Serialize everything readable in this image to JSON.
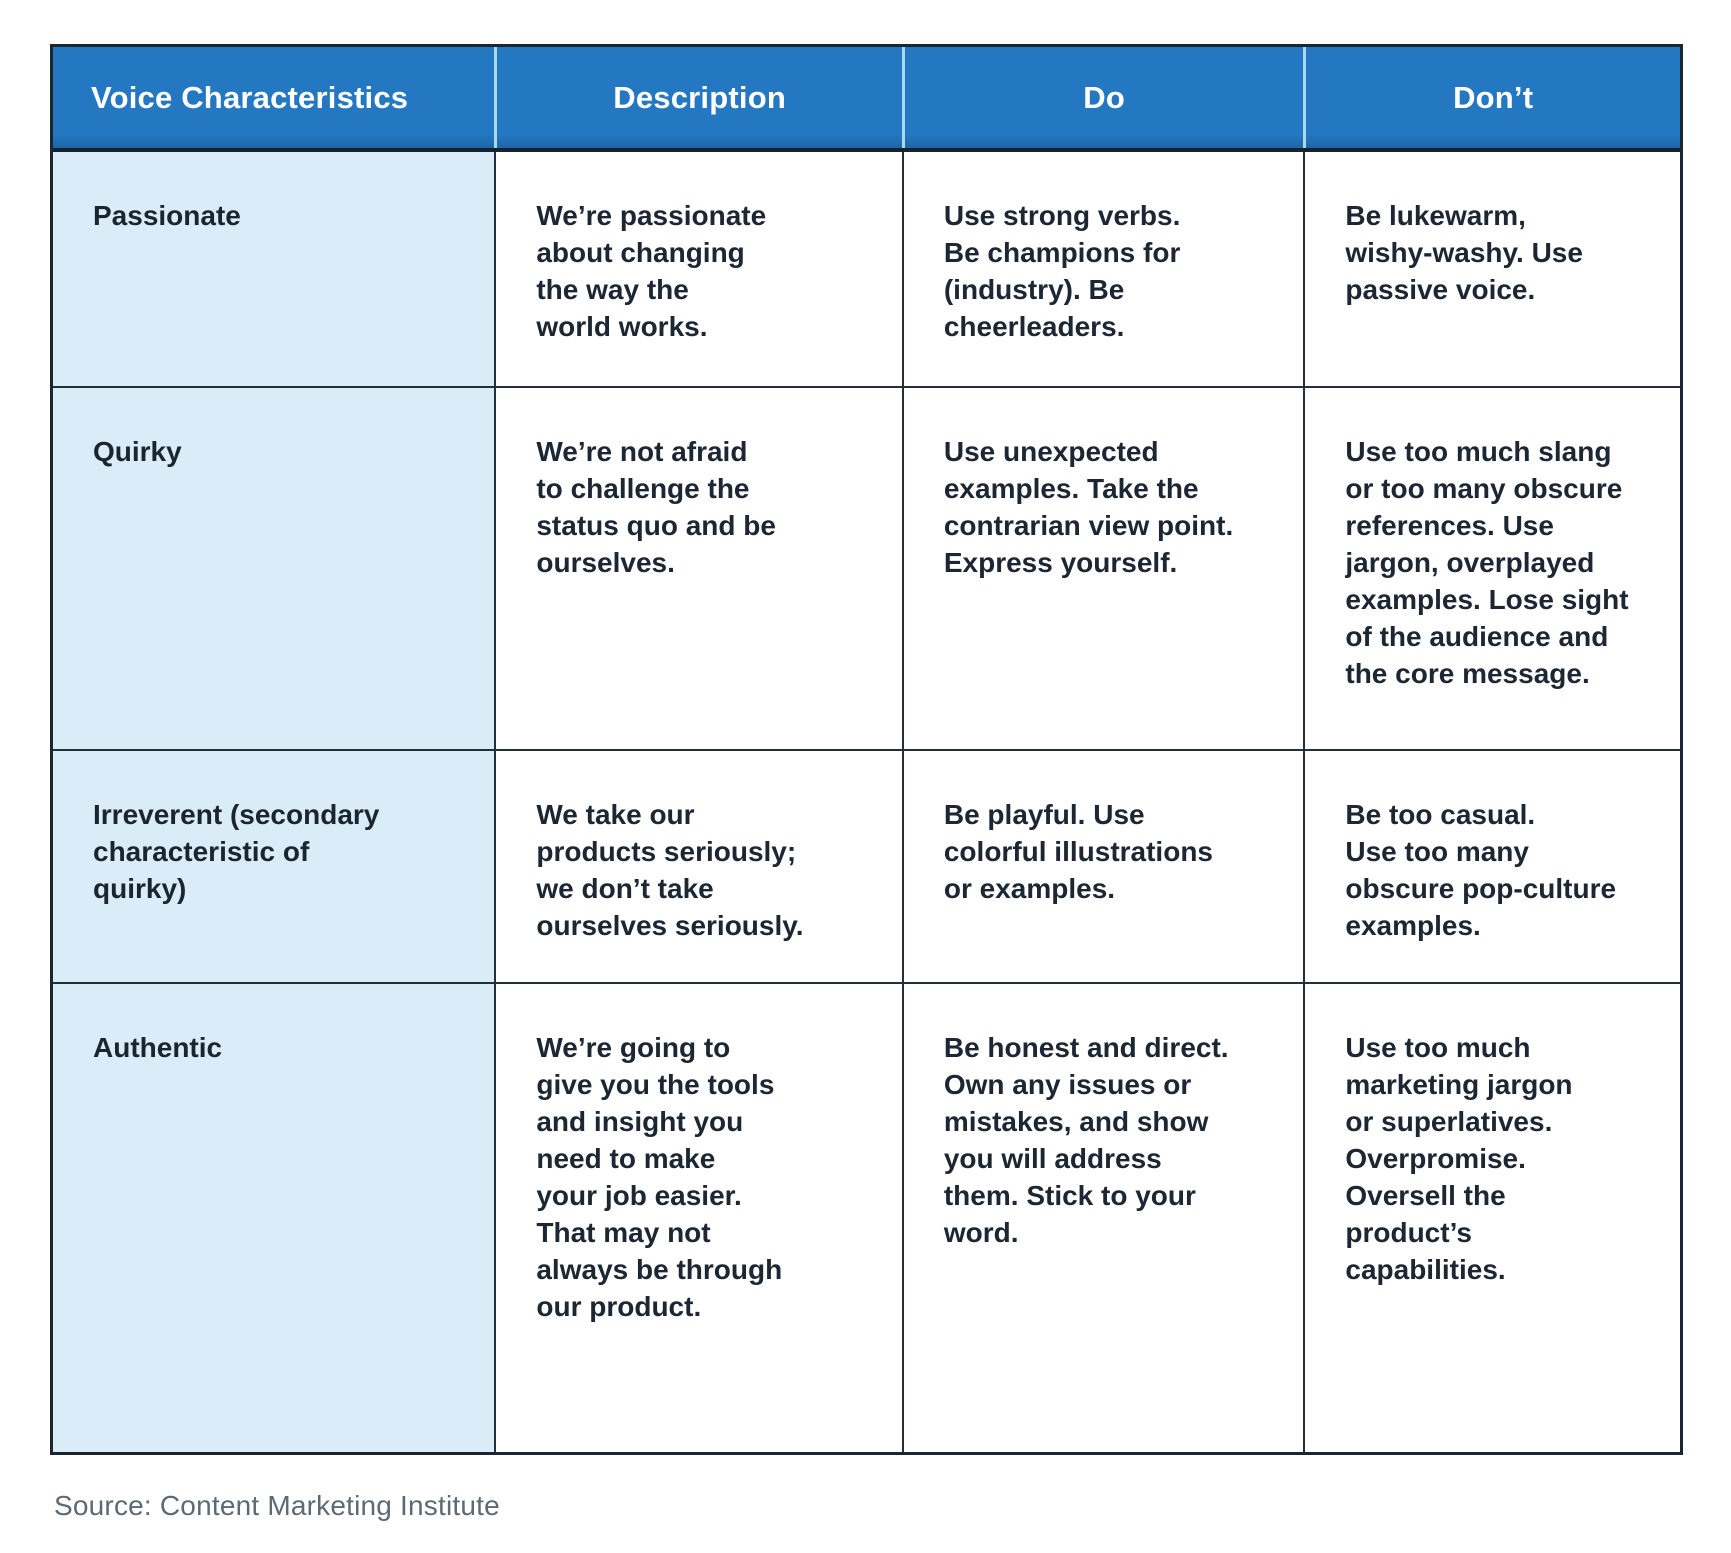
{
  "table": {
    "headers": [
      {
        "label": "Voice Characteristics"
      },
      {
        "label": "Description"
      },
      {
        "label": "Do"
      },
      {
        "label": "Don’t"
      }
    ],
    "rows": [
      {
        "characteristic": "Passionate",
        "description": "We’re passionate\nabout changing\nthe way the\nworld works.",
        "do": "Use strong verbs.\nBe champions for\n(industry). Be\ncheerleaders.",
        "dont": "Be lukewarm,\nwishy-washy. Use\npassive voice."
      },
      {
        "characteristic": "Quirky",
        "description": "We’re not afraid\nto challenge the\nstatus quo and be\nourselves.",
        "do": "Use unexpected\nexamples. Take the\ncontrarian view point.\nExpress yourself.",
        "dont": "Use too much slang\nor too many obscure\nreferences. Use\njargon, overplayed\nexamples. Lose sight\nof the audience and\nthe core message."
      },
      {
        "characteristic": "Irreverent (secondary\ncharacteristic of\nquirky)",
        "description": "We take our\nproducts seriously;\nwe don’t take\nourselves seriously.",
        "do": "Be playful. Use\ncolorful illustrations\nor examples.",
        "dont": "Be too casual.\nUse too many\nobscure pop-culture\nexamples."
      },
      {
        "characteristic": "Authentic",
        "description": "We’re going to\ngive you the tools\nand insight you\nneed to make\nyour job easier.\nThat may not\nalways be through\nour product.",
        "do": "Be honest and direct.\nOwn any issues or\nmistakes, and show\nyou will address\nthem. Stick to your\nword.",
        "dont": "Use too much\nmarketing jargon\nor superlatives.\nOverpromise.\nOversell the\nproduct’s\ncapabilities."
      }
    ]
  },
  "footer": {
    "source": "Source: Content Marketing Institute"
  },
  "colors": {
    "header_background": "#2478C2",
    "header_text": "#FFFFFF",
    "header_divider": "#A9D6F1",
    "characteristic_column_background": "#D9ECF8",
    "border": "#242F3A",
    "cell_text": "#1D2733",
    "source_text": "#5D6A73"
  }
}
